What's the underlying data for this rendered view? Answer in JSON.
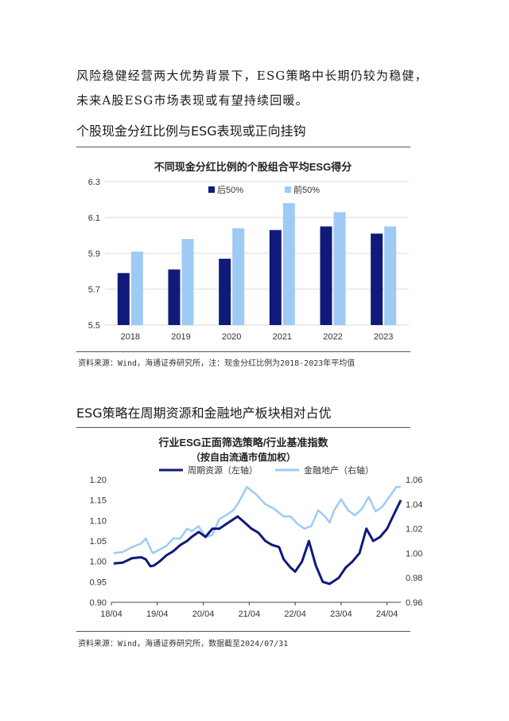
{
  "paragraph": {
    "line1": "风险稳健经营两大优势背景下，ESG策略中长期仍较为稳健，",
    "line2": "未来A股ESG市场表现或有望持续回暖。"
  },
  "section1": {
    "heading": "个股现金分红比例与ESG表现或正向挂钩",
    "source": "资料来源：Wind，海通证券研究所，注：现金分红比例为2018-2023年平均值"
  },
  "section2": {
    "heading": "ESG策略在周期资源和金融地产板块相对占优",
    "source": "资料来源：Wind，海通证券研究所，数据截至2024/07/31"
  },
  "colors": {
    "dark_navy": "#0f1a7a",
    "light_blue": "#9ecbf5",
    "grid": "#d9d9d9"
  },
  "chart_data": [
    {
      "type": "bar",
      "title": "不同现金分红比例的个股组合平均ESG得分",
      "categories": [
        "2018",
        "2019",
        "2020",
        "2021",
        "2022",
        "2023"
      ],
      "series": [
        {
          "name": "后50%",
          "values": [
            5.79,
            5.81,
            5.87,
            6.03,
            6.05,
            6.01
          ]
        },
        {
          "name": "前50%",
          "values": [
            5.91,
            5.98,
            6.04,
            6.18,
            6.13,
            6.05
          ]
        }
      ],
      "ylim": [
        5.5,
        6.3
      ],
      "yticks": [
        "5.5",
        "5.7",
        "5.9",
        "6.1",
        "6.3"
      ],
      "grid": true,
      "legend": "top-center"
    },
    {
      "type": "line",
      "title": "行业ESG正面筛选策略/行业基准指数",
      "subtitle": "（按自由流通市值加权）",
      "x_ticks": [
        "18/04",
        "19/04",
        "20/04",
        "21/04",
        "22/04",
        "23/04",
        "24/04"
      ],
      "y_left": {
        "ticks": [
          "0.90",
          "0.95",
          "1.00",
          "1.05",
          "1.10",
          "1.15",
          "1.20"
        ],
        "range": [
          0.9,
          1.2
        ]
      },
      "y_right": {
        "ticks": [
          "0.96",
          "0.98",
          "1.00",
          "1.02",
          "1.04",
          "1.06"
        ],
        "range": [
          0.96,
          1.06
        ]
      },
      "legend": "top-center",
      "series": [
        {
          "name": "周期资源（左轴）",
          "axis": "left",
          "x": [
            2018.3,
            2018.5,
            2018.7,
            2018.9,
            2019.0,
            2019.1,
            2019.18,
            2019.3,
            2019.45,
            2019.6,
            2019.75,
            2019.9,
            2020.0,
            2020.15,
            2020.3,
            2020.45,
            2020.6,
            2020.8,
            2021.0,
            2021.15,
            2021.3,
            2021.45,
            2021.6,
            2021.75,
            2021.9,
            2022.0,
            2022.15,
            2022.25,
            2022.4,
            2022.55,
            2022.7,
            2022.85,
            2023.0,
            2023.2,
            2023.35,
            2023.5,
            2023.65,
            2023.8,
            2023.95,
            2024.1,
            2024.25,
            2024.4,
            2024.55
          ],
          "values": [
            0.995,
            0.997,
            1.008,
            1.01,
            1.005,
            0.988,
            0.99,
            1.0,
            1.015,
            1.025,
            1.04,
            1.05,
            1.06,
            1.072,
            1.06,
            1.08,
            1.08,
            1.095,
            1.11,
            1.095,
            1.08,
            1.07,
            1.05,
            1.04,
            1.035,
            1.005,
            0.985,
            0.975,
            1.0,
            1.05,
            0.99,
            0.95,
            0.945,
            0.96,
            0.985,
            1.0,
            1.02,
            1.08,
            1.05,
            1.06,
            1.08,
            1.115,
            1.15
          ]
        },
        {
          "name": "金融地产（右轴）",
          "axis": "right",
          "x": [
            2018.3,
            2018.5,
            2018.7,
            2018.9,
            2019.0,
            2019.15,
            2019.3,
            2019.45,
            2019.6,
            2019.75,
            2019.9,
            2020.0,
            2020.15,
            2020.3,
            2020.45,
            2020.6,
            2020.75,
            2020.9,
            2021.0,
            2021.1,
            2021.2,
            2021.4,
            2021.6,
            2021.8,
            2022.0,
            2022.15,
            2022.3,
            2022.45,
            2022.6,
            2022.75,
            2022.9,
            2023.0,
            2023.1,
            2023.25,
            2023.4,
            2023.55,
            2023.7,
            2023.85,
            2024.0,
            2024.15,
            2024.3,
            2024.45,
            2024.55
          ],
          "values": [
            1.0,
            1.001,
            1.005,
            1.008,
            1.012,
            1.0,
            1.003,
            1.006,
            1.012,
            1.012,
            1.02,
            1.018,
            1.022,
            1.013,
            1.015,
            1.028,
            1.031,
            1.035,
            1.04,
            1.047,
            1.054,
            1.048,
            1.04,
            1.036,
            1.03,
            1.03,
            1.024,
            1.02,
            1.022,
            1.035,
            1.03,
            1.025,
            1.035,
            1.044,
            1.035,
            1.031,
            1.036,
            1.046,
            1.034,
            1.038,
            1.046,
            1.054,
            1.054
          ]
        }
      ]
    }
  ]
}
